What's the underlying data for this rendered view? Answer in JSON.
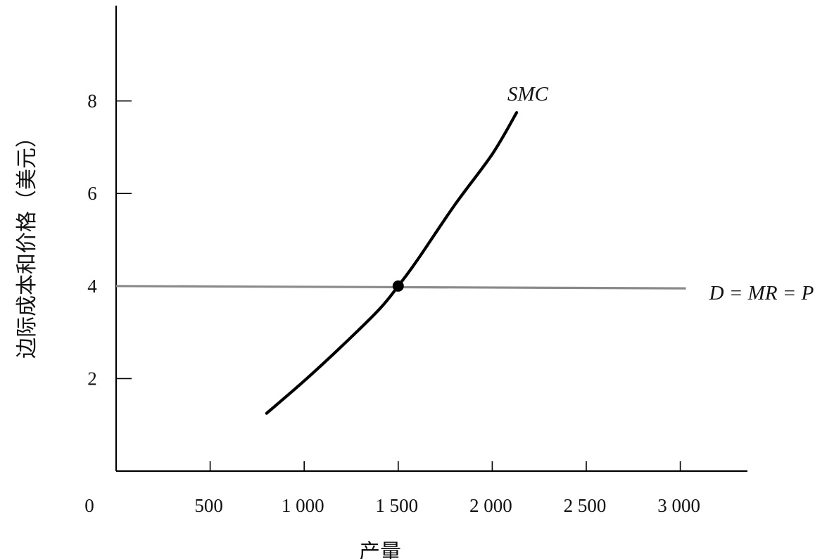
{
  "chart_data": {
    "type": "line",
    "title": "",
    "xlabel": "产量",
    "ylabel": "边际成本和价格（美元）",
    "xlim": [
      0,
      3300
    ],
    "ylim": [
      0,
      10
    ],
    "origin_label": "0",
    "x_ticks": [
      500,
      1000,
      1500,
      2000,
      2500,
      3000
    ],
    "x_tick_labels": [
      "500",
      "1 000",
      "1 500",
      "2 000",
      "2 500",
      "3 000"
    ],
    "y_ticks": [
      2,
      4,
      6,
      8
    ],
    "y_tick_labels": [
      "2",
      "4",
      "6",
      "8"
    ],
    "grid": false,
    "legend": "none",
    "series": [
      {
        "name": "SMC",
        "color": "#000000",
        "x": [
          800,
          1000,
          1200,
          1400,
          1500,
          1600,
          1800,
          2000,
          2130
        ],
        "y": [
          1.25,
          1.95,
          2.7,
          3.5,
          4.0,
          4.55,
          5.75,
          6.85,
          7.75
        ]
      },
      {
        "name": "D = MR = P",
        "color": "#8a8a8a",
        "x": [
          0,
          3030
        ],
        "y": [
          4.0,
          3.95
        ]
      }
    ],
    "annotations": [
      {
        "type": "point",
        "x": 1500,
        "y": 4.0
      }
    ]
  }
}
